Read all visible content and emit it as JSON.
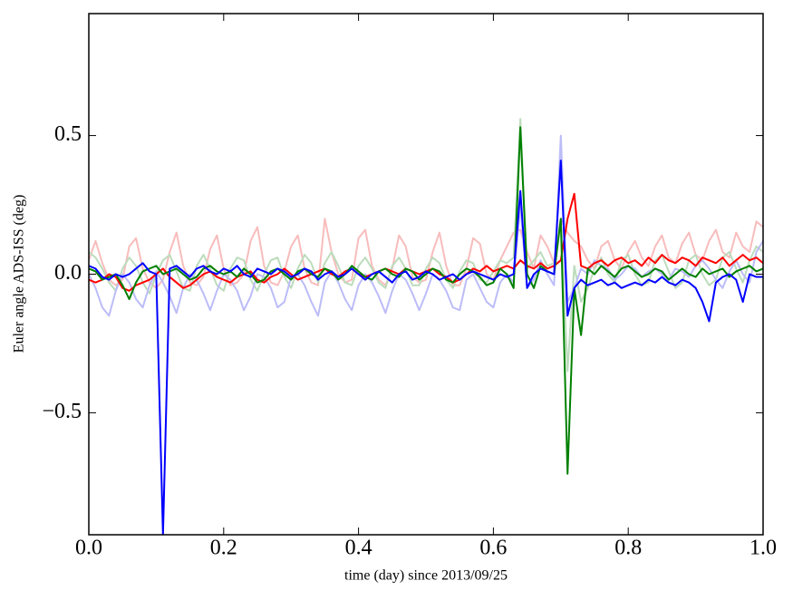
{
  "chart_data": {
    "type": "line",
    "xlabel": "time (day) since 2013/09/25",
    "ylabel": "Euler angle ADS-ISS (deg)",
    "xlim": [
      0,
      1
    ],
    "ylim": [
      -0.94,
      0.94
    ],
    "xticks": [
      {
        "value": 0,
        "label": "0.0"
      },
      0.2,
      0.4,
      0.6,
      0.8,
      {
        "value": 1,
        "label": "1.0"
      }
    ],
    "yticks": [
      {
        "value": -0.5,
        "label": "−0.5"
      },
      {
        "value": 0,
        "label": "0.0"
      },
      0.5
    ],
    "x": [
      0,
      0.01,
      0.02,
      0.03,
      0.04,
      0.05,
      0.06,
      0.07,
      0.08,
      0.09,
      0.1,
      0.11,
      0.12,
      0.13,
      0.14,
      0.15,
      0.16,
      0.17,
      0.18,
      0.19,
      0.2,
      0.21,
      0.22,
      0.23,
      0.24,
      0.25,
      0.26,
      0.27,
      0.28,
      0.29,
      0.3,
      0.31,
      0.32,
      0.33,
      0.34,
      0.35,
      0.36,
      0.37,
      0.38,
      0.39,
      0.4,
      0.41,
      0.42,
      0.43,
      0.44,
      0.45,
      0.46,
      0.47,
      0.48,
      0.49,
      0.5,
      0.51,
      0.52,
      0.53,
      0.54,
      0.55,
      0.56,
      0.57,
      0.58,
      0.59,
      0.6,
      0.61,
      0.62,
      0.63,
      0.64,
      0.65,
      0.66,
      0.67,
      0.68,
      0.69,
      0.7,
      0.71,
      0.72,
      0.73,
      0.74,
      0.75,
      0.76,
      0.77,
      0.78,
      0.79,
      0.8,
      0.81,
      0.82,
      0.83,
      0.84,
      0.85,
      0.86,
      0.87,
      0.88,
      0.89,
      0.9,
      0.91,
      0.92,
      0.93,
      0.94,
      0.95,
      0.96,
      0.97,
      0.98,
      0.99,
      1
    ],
    "series": [
      {
        "color": "#f8bcbc",
        "values": [
          0.05,
          0.12,
          0.04,
          -0.02,
          -0.04,
          -0.02,
          0.1,
          0.13,
          0.02,
          -0.03,
          -0.05,
          -0.02,
          0.08,
          0.15,
          0.03,
          -0.03,
          -0.04,
          -0.01,
          0.09,
          0.14,
          0.02,
          -0.04,
          -0.03,
          0.0,
          0.12,
          0.17,
          0.03,
          -0.03,
          -0.04,
          0.01,
          0.1,
          0.14,
          0.02,
          -0.03,
          -0.04,
          0.2,
          0.08,
          0.0,
          -0.03,
          -0.02,
          0.13,
          0.16,
          0.03,
          -0.02,
          -0.04,
          0.02,
          0.14,
          0.1,
          -0.01,
          -0.03,
          -0.02,
          0.08,
          0.15,
          0.03,
          -0.04,
          -0.04,
          0.02,
          0.13,
          0.11,
          0.0,
          -0.02,
          0.05,
          0.1,
          0.15,
          0.16,
          0.08,
          0.02,
          0.14,
          0.1,
          0.04,
          0.2,
          0.15,
          0.12,
          0.1,
          0.05,
          0.02,
          0.1,
          0.12,
          0.05,
          0.02,
          0.08,
          0.12,
          0.06,
          0.03,
          0.1,
          0.14,
          0.06,
          0.04,
          0.11,
          0.15,
          0.07,
          0.05,
          0.12,
          0.16,
          0.08,
          0.06,
          0.15,
          0.1,
          0.08,
          0.19,
          0.17
        ]
      },
      {
        "color": "#bcdcbc",
        "values": [
          0.08,
          0.06,
          0.02,
          -0.03,
          -0.06,
          0.02,
          0.06,
          0.03,
          -0.03,
          -0.07,
          0.0,
          0.05,
          0.07,
          0.01,
          -0.05,
          -0.06,
          0.03,
          0.07,
          0.02,
          -0.04,
          -0.06,
          0.02,
          0.06,
          0.05,
          -0.02,
          -0.06,
          0.0,
          0.05,
          0.06,
          -0.01,
          -0.05,
          0.02,
          0.07,
          0.04,
          -0.03,
          0.04,
          0.08,
          0.03,
          -0.03,
          -0.04,
          0.03,
          0.06,
          0.02,
          -0.03,
          -0.05,
          0.03,
          0.06,
          0.02,
          -0.04,
          -0.04,
          0.02,
          0.06,
          0.04,
          -0.02,
          -0.05,
          0.01,
          0.05,
          0.04,
          -0.02,
          -0.03,
          0.01,
          0.05,
          0.04,
          0.06,
          0.56,
          0.02,
          0.05,
          0.08,
          0.03,
          0.04,
          0.2,
          -0.35,
          0.03,
          -0.1,
          -0.05,
          0.02,
          0.06,
          0.0,
          -0.03,
          0.05,
          0.07,
          0.0,
          -0.04,
          -0.03,
          0.05,
          0.07,
          0.01,
          -0.05,
          -0.03,
          0.05,
          0.07,
          0.0,
          -0.04,
          -0.02,
          0.06,
          0.08,
          0.02,
          -0.03,
          0.05,
          0.1,
          0.08
        ]
      },
      {
        "color": "#bcbcf8",
        "values": [
          0.0,
          -0.05,
          -0.12,
          -0.15,
          -0.06,
          0.0,
          -0.03,
          -0.09,
          -0.12,
          -0.04,
          0.01,
          -0.03,
          -0.08,
          -0.14,
          -0.05,
          0.0,
          -0.02,
          -0.07,
          -0.13,
          -0.06,
          0.0,
          -0.02,
          -0.06,
          -0.13,
          -0.08,
          0.0,
          -0.01,
          -0.05,
          -0.12,
          -0.1,
          -0.01,
          0.0,
          -0.04,
          -0.1,
          -0.15,
          -0.03,
          0.01,
          -0.03,
          -0.09,
          -0.13,
          -0.04,
          0.0,
          -0.03,
          -0.08,
          -0.14,
          -0.06,
          0.0,
          -0.02,
          -0.07,
          -0.13,
          -0.07,
          0.0,
          -0.02,
          -0.06,
          -0.12,
          -0.13,
          -0.02,
          0.0,
          -0.05,
          -0.1,
          -0.12,
          -0.03,
          0.0,
          -0.03,
          0.25,
          -0.05,
          -0.02,
          0.05,
          0.0,
          -0.04,
          0.5,
          -0.1,
          -0.05,
          0.02,
          0.0,
          0.05,
          0.03,
          0.02,
          -0.02,
          0.0,
          0.03,
          0.02,
          -0.01,
          0.01,
          0.02,
          0.0,
          -0.02,
          0.02,
          0.01,
          -0.01,
          0.03,
          0.05,
          0.02,
          -0.02,
          -0.05,
          0.01,
          0.05,
          0.0,
          -0.03,
          0.08,
          0.12
        ]
      },
      {
        "color": "#ff0000",
        "values": [
          -0.02,
          -0.03,
          -0.02,
          0.0,
          -0.01,
          -0.05,
          -0.06,
          -0.04,
          -0.03,
          -0.02,
          0.0,
          0.02,
          -0.01,
          -0.03,
          -0.05,
          -0.04,
          -0.02,
          0.0,
          0.01,
          -0.01,
          -0.02,
          -0.03,
          -0.01,
          0.0,
          0.01,
          -0.02,
          -0.03,
          -0.01,
          0.0,
          0.02,
          0.0,
          -0.02,
          -0.01,
          0.0,
          0.01,
          0.02,
          0.0,
          -0.01,
          0.01,
          0.02,
          0.0,
          -0.01,
          0.0,
          0.01,
          0.02,
          0.01,
          0.0,
          0.02,
          0.01,
          0.0,
          0.01,
          0.02,
          0.0,
          -0.01,
          -0.03,
          -0.02,
          0.0,
          0.02,
          0.01,
          0.03,
          0.01,
          0.02,
          0.03,
          0.02,
          0.05,
          0.03,
          0.02,
          0.04,
          0.02,
          0.03,
          0.05,
          0.2,
          0.29,
          0.03,
          0.02,
          0.04,
          0.05,
          0.03,
          0.05,
          0.06,
          0.04,
          0.05,
          0.03,
          0.06,
          0.04,
          0.07,
          0.05,
          0.04,
          0.06,
          0.05,
          0.03,
          0.06,
          0.05,
          0.04,
          0.06,
          0.03,
          0.05,
          0.07,
          0.05,
          0.06,
          0.04
        ]
      },
      {
        "color": "#008000",
        "values": [
          0.02,
          0.01,
          -0.02,
          -0.01,
          0.0,
          -0.04,
          -0.09,
          -0.03,
          0.01,
          0.02,
          0.03,
          0.0,
          0.01,
          0.02,
          0.0,
          -0.02,
          -0.01,
          0.02,
          0.03,
          0.01,
          0.0,
          0.01,
          -0.01,
          0.02,
          0.0,
          -0.03,
          -0.02,
          0.01,
          0.02,
          0.0,
          -0.02,
          0.01,
          0.02,
          0.0,
          -0.01,
          0.02,
          0.01,
          -0.02,
          0.0,
          0.03,
          0.01,
          -0.01,
          -0.02,
          0.01,
          0.02,
          0.0,
          -0.01,
          0.02,
          0.01,
          -0.02,
          0.0,
          0.02,
          0.01,
          -0.02,
          -0.03,
          0.0,
          0.02,
          0.01,
          -0.01,
          -0.04,
          -0.03,
          0.02,
          0.0,
          -0.05,
          0.53,
          0.0,
          -0.05,
          0.03,
          0.01,
          0.0,
          0.2,
          -0.72,
          -0.05,
          -0.22,
          0.02,
          0.0,
          0.03,
          0.01,
          -0.01,
          0.02,
          0.03,
          0.01,
          -0.01,
          0.0,
          0.02,
          0.01,
          -0.02,
          0.0,
          0.02,
          0.0,
          -0.01,
          0.02,
          0.0,
          0.01,
          0.02,
          -0.01,
          0.01,
          0.02,
          0.03,
          0.01,
          0.02
        ]
      },
      {
        "color": "#0000ff",
        "values": [
          0.03,
          0.02,
          -0.01,
          -0.02,
          0.0,
          -0.01,
          0.0,
          0.02,
          0.04,
          0.01,
          0.0,
          -0.94,
          0.02,
          0.03,
          0.01,
          -0.01,
          0.02,
          0.03,
          0.01,
          0.0,
          0.02,
          0.01,
          0.03,
          0.0,
          -0.01,
          0.02,
          0.01,
          0.0,
          0.02,
          0.01,
          -0.01,
          0.0,
          0.02,
          0.01,
          -0.02,
          0.0,
          0.01,
          -0.01,
          0.0,
          0.02,
          0.0,
          -0.02,
          0.0,
          0.01,
          -0.01,
          -0.03,
          0.0,
          0.01,
          -0.02,
          -0.01,
          0.01,
          0.0,
          -0.02,
          -0.01,
          0.0,
          -0.02,
          0.0,
          0.01,
          0.0,
          -0.01,
          -0.02,
          0.0,
          -0.01,
          0.0,
          0.3,
          -0.05,
          0.0,
          0.02,
          0.01,
          0.0,
          0.41,
          -0.15,
          -0.05,
          -0.02,
          -0.04,
          -0.03,
          -0.02,
          -0.04,
          -0.03,
          -0.05,
          -0.04,
          -0.03,
          -0.04,
          -0.02,
          -0.03,
          -0.01,
          -0.03,
          -0.04,
          -0.02,
          -0.03,
          -0.05,
          -0.1,
          -0.17,
          -0.03,
          -0.01,
          0.0,
          -0.02,
          -0.1,
          0.0,
          -0.01,
          -0.01
        ]
      }
    ]
  }
}
